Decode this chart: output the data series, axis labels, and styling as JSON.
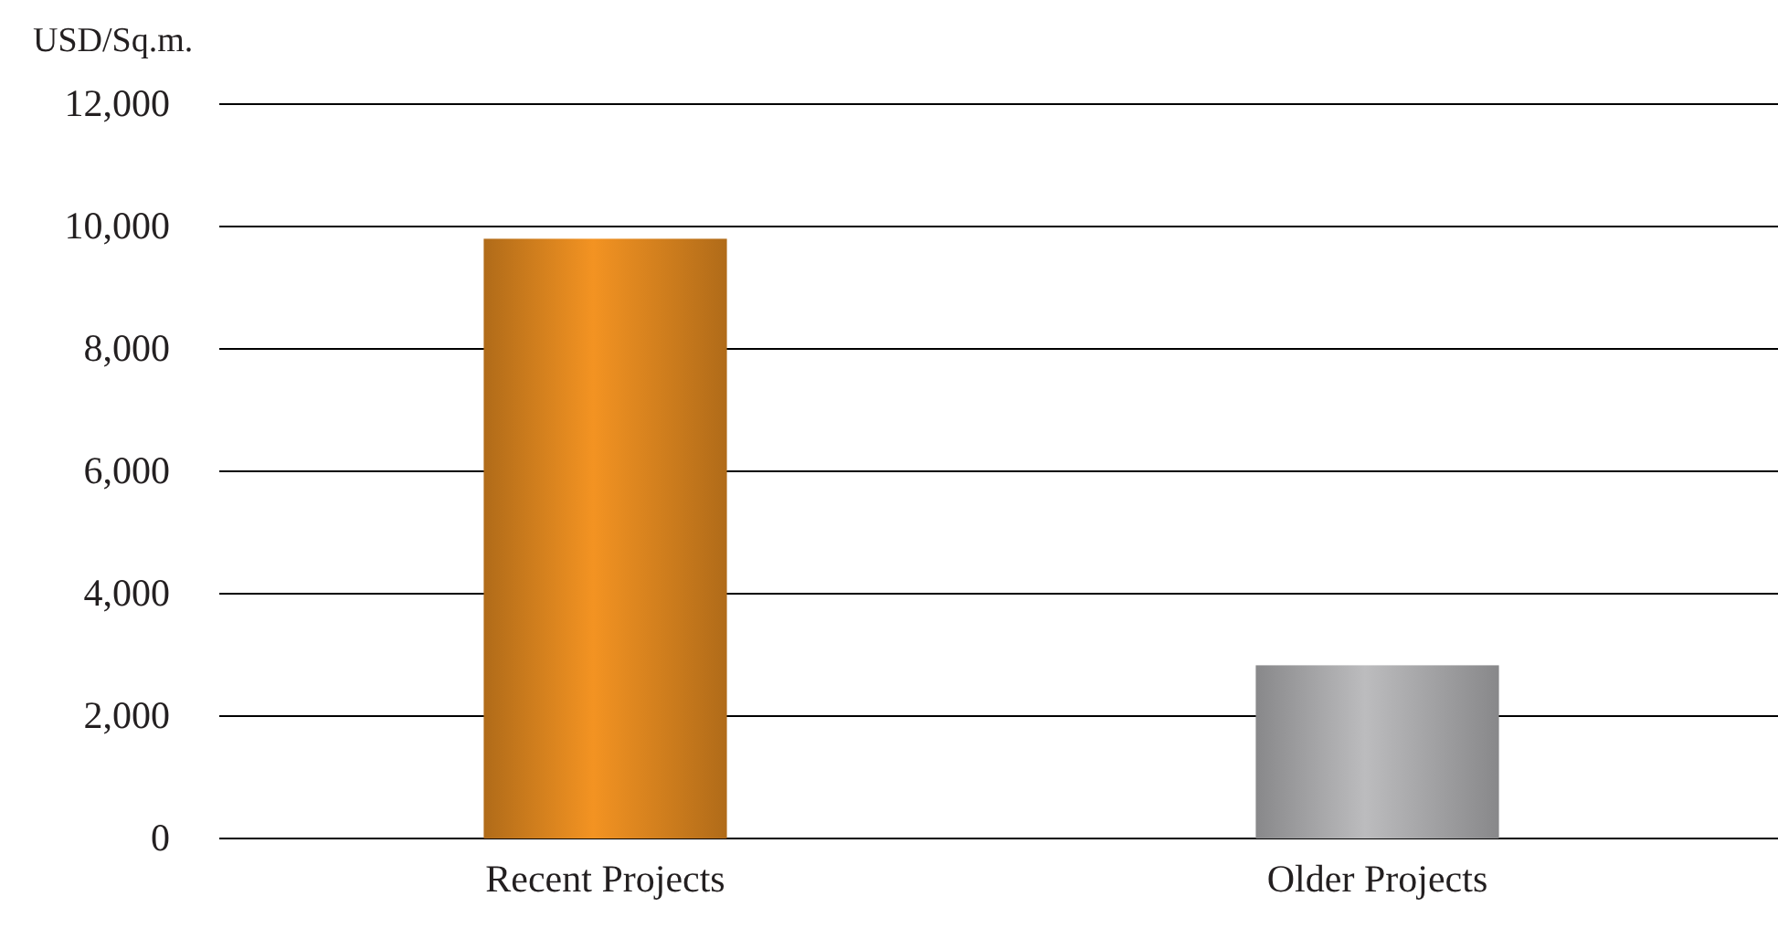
{
  "chart_data": {
    "type": "bar",
    "ylabel": "USD/Sq.m.",
    "categories": [
      "Recent Projects",
      "Older Projects"
    ],
    "values": [
      9800,
      2830
    ],
    "colors": [
      "#f39322",
      "#bcbcbe"
    ],
    "ylim": [
      0,
      12000
    ],
    "yticks": [
      {
        "value": 0,
        "label": "0"
      },
      {
        "value": 2000,
        "label": "2,000"
      },
      {
        "value": 4000,
        "label": "4,000"
      },
      {
        "value": 6000,
        "label": "6,000"
      },
      {
        "value": 8000,
        "label": "8,000"
      },
      {
        "value": 10000,
        "label": "10,000"
      },
      {
        "value": 12000,
        "label": "12,000"
      }
    ],
    "grid": "y"
  }
}
